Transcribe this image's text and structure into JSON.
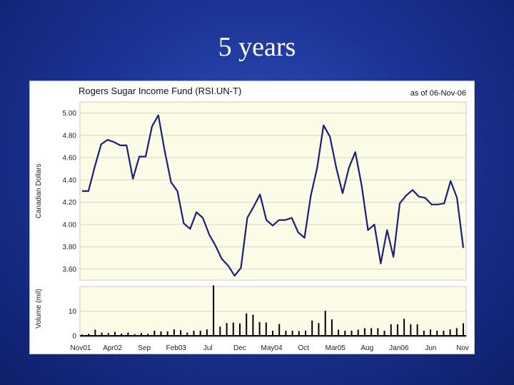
{
  "slide": {
    "title": "5 years"
  },
  "chart_data": [
    {
      "type": "line",
      "title": "Rogers Sugar Income Fund (RSI.UN-T)",
      "annotation": "as of 06-Nov-06",
      "ylabel": "Canadian Dollars",
      "ylim": [
        3.5,
        5.1
      ],
      "yticks": [
        "5.00",
        "4.80",
        "4.60",
        "4.40",
        "4.20",
        "4.00",
        "3.80",
        "3.60"
      ],
      "grid": true,
      "line_color": "#1a1f7a",
      "x_tick_labels": [
        "Nov01",
        "Apr02",
        "Sep",
        "Feb03",
        "Jul",
        "Dec",
        "May04",
        "Oct",
        "Mar05",
        "Aug",
        "Jan06",
        "Jun",
        "Nov"
      ],
      "series": [
        {
          "values": [
            4.3,
            4.3,
            4.52,
            4.72,
            4.76,
            4.74,
            4.71,
            4.71,
            4.41,
            4.61,
            4.61,
            4.88,
            4.98,
            4.66,
            4.38,
            4.3,
            4.01,
            3.96,
            4.11,
            4.06,
            3.91,
            3.81,
            3.69,
            3.63,
            3.54,
            3.61,
            4.06,
            4.16,
            4.27,
            4.04,
            3.99,
            4.04,
            4.04,
            4.06,
            3.93,
            3.88,
            4.26,
            4.51,
            4.89,
            4.79,
            4.51,
            4.28,
            4.51,
            4.65,
            4.35,
            3.95,
            4.0,
            3.65,
            3.95,
            3.71,
            4.19,
            4.26,
            4.31,
            4.25,
            4.24,
            4.18,
            4.18,
            4.19,
            4.39,
            4.24,
            3.79
          ]
        }
      ]
    },
    {
      "type": "bar",
      "ylabel": "Volume (mil)",
      "ylim": [
        0,
        20
      ],
      "yticks": [
        "10",
        "0"
      ],
      "bar_color": "#000000",
      "values": [
        0.6,
        0.8,
        2.5,
        1.3,
        1.1,
        1.6,
        0.9,
        1.3,
        0.7,
        1.1,
        0.8,
        2.1,
        1.8,
        1.8,
        2.6,
        2.3,
        1.3,
        2.1,
        2.1,
        2.6,
        20.5,
        3.7,
        5.2,
        5.4,
        5.0,
        9.1,
        8.6,
        5.6,
        5.4,
        2.1,
        4.8,
        2.1,
        2.1,
        1.9,
        2.1,
        6.2,
        5.2,
        10.2,
        6.7,
        2.5,
        2.1,
        2.1,
        2.5,
        3.1,
        3.1,
        3.1,
        2.1,
        4.7,
        4.7,
        6.9,
        4.7,
        4.7,
        2.1,
        2.6,
        2.1,
        2.1,
        2.6,
        3.1,
        5.1
      ]
    }
  ]
}
